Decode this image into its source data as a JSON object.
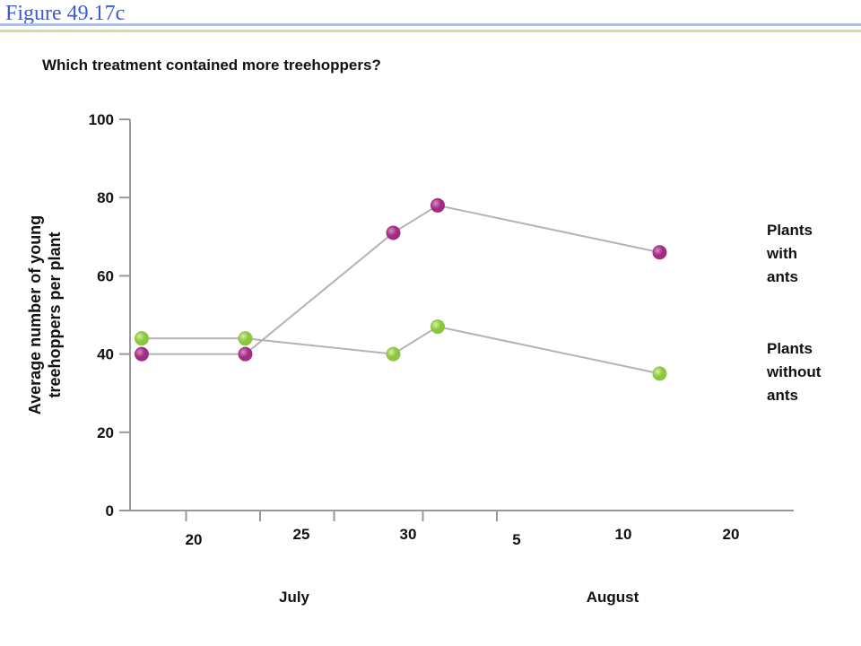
{
  "figure_label": "Figure 49.17c",
  "question": "Which treatment contained more treehoppers?",
  "colors": {
    "with_ants": "#a12d82",
    "without_ants": "#8cc63f",
    "lines": "#b3b3b3",
    "axis": "#999999"
  },
  "chart_data": {
    "type": "scatter",
    "title": "",
    "ylabel": "Average number of young treehoppers per plant",
    "ylabel_lines": [
      "Average number of young",
      "treehoppers per plant"
    ],
    "ylim": [
      0,
      100
    ],
    "yticks": [
      0,
      20,
      40,
      60,
      80,
      100
    ],
    "xlabel": "",
    "x_tick_labels": [
      "20",
      "25",
      "30",
      "5",
      "10",
      "20"
    ],
    "month_labels": [
      "July",
      "August"
    ],
    "series": [
      {
        "name": "Plants with ants",
        "legend_lines": [
          "Plants",
          "with",
          "ants"
        ],
        "points": [
          {
            "x": "Jul 17",
            "y": 40
          },
          {
            "x": "Jul 24",
            "y": 40
          },
          {
            "x": "Aug 3",
            "y": 71
          },
          {
            "x": "Aug 6",
            "y": 78
          },
          {
            "x": "Aug 21",
            "y": 66
          }
        ]
      },
      {
        "name": "Plants without ants",
        "legend_lines": [
          "Plants",
          "without",
          "ants"
        ],
        "points": [
          {
            "x": "Jul 17",
            "y": 44
          },
          {
            "x": "Jul 24",
            "y": 44
          },
          {
            "x": "Aug 3",
            "y": 40
          },
          {
            "x": "Aug 6",
            "y": 47
          },
          {
            "x": "Aug 21",
            "y": 35
          }
        ]
      }
    ],
    "grid": false,
    "legend_position": "right"
  }
}
